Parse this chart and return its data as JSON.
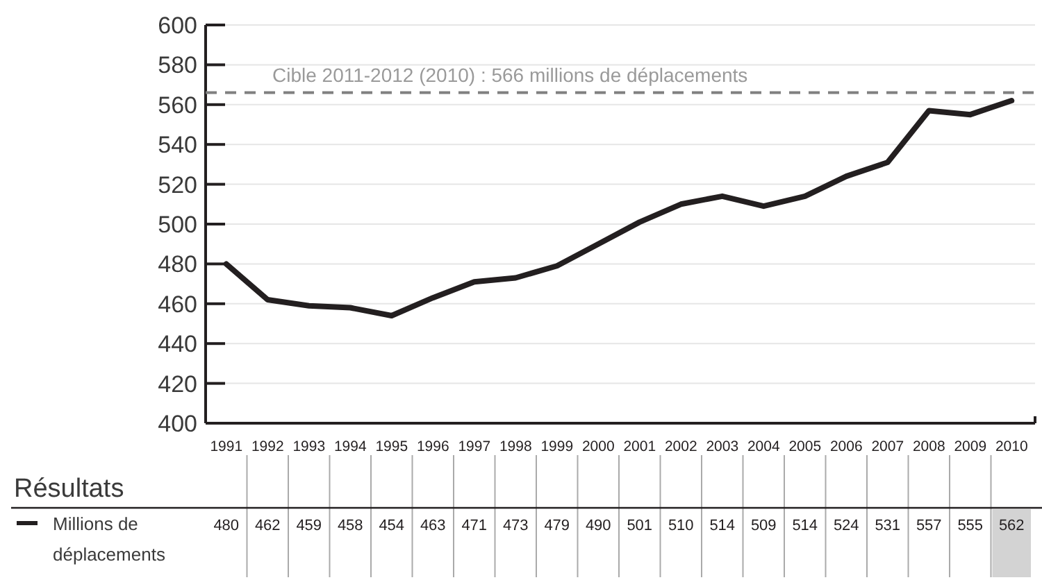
{
  "chart_data": {
    "type": "line",
    "categories": [
      "1991",
      "1992",
      "1993",
      "1994",
      "1995",
      "1996",
      "1997",
      "1998",
      "1999",
      "2000",
      "2001",
      "2002",
      "2003",
      "2004",
      "2005",
      "2006",
      "2007",
      "2008",
      "2009",
      "2010"
    ],
    "series": [
      {
        "name": "Millions de déplacements",
        "color": "#231f20",
        "values": [
          480,
          462,
          459,
          458,
          454,
          463,
          471,
          473,
          479,
          490,
          501,
          510,
          514,
          509,
          514,
          524,
          531,
          557,
          555,
          562
        ]
      }
    ],
    "ylim": [
      400,
      600
    ],
    "yticks": [
      400,
      420,
      440,
      460,
      480,
      500,
      520,
      540,
      560,
      580,
      600
    ],
    "grid": "y",
    "legend": "bottom",
    "legend_title": "Résultats",
    "data_labels": true,
    "marker": "none",
    "line_style": "solid",
    "ref_lines": [
      {
        "axis": "y",
        "value": 566,
        "label": "Cible 2011-2012 (2010) : 566 millions de déplacements",
        "color": "#808080",
        "line_style": "dashed"
      }
    ]
  }
}
